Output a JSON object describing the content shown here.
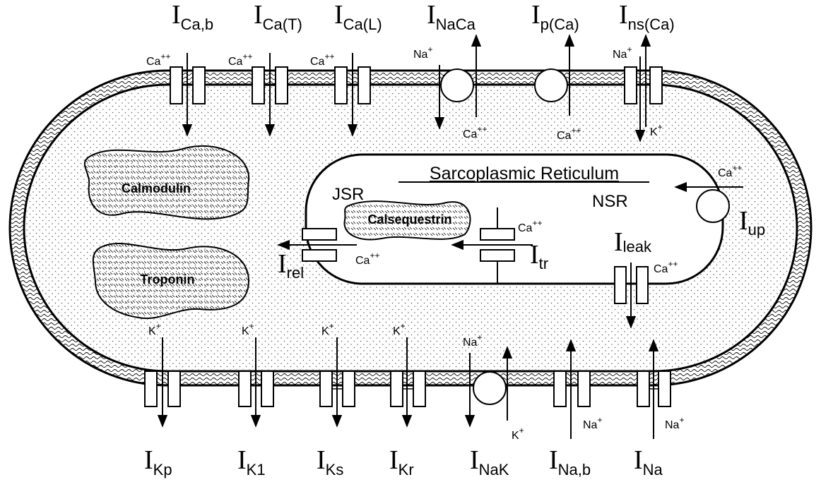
{
  "currents_top": {
    "ca_b": {
      "main": "I",
      "sub": "Ca,b"
    },
    "ca_t": {
      "main": "I",
      "sub": "Ca(T)"
    },
    "ca_l": {
      "main": "I",
      "sub": "Ca(L)"
    },
    "naca": {
      "main": "I",
      "sub": "NaCa"
    },
    "p_ca": {
      "main": "I",
      "sub": "p(Ca)"
    },
    "ns_ca": {
      "main": "I",
      "sub": "ns(Ca)"
    }
  },
  "currents_bottom": {
    "kp": {
      "main": "I",
      "sub": "Kp"
    },
    "k1": {
      "main": "I",
      "sub": "K1"
    },
    "ks": {
      "main": "I",
      "sub": "Ks"
    },
    "kr": {
      "main": "I",
      "sub": "Kr"
    },
    "nak": {
      "main": "I",
      "sub": "NaK"
    },
    "na_b": {
      "main": "I",
      "sub": "Na,b"
    },
    "na": {
      "main": "I",
      "sub": "Na"
    }
  },
  "currents_internal": {
    "up": {
      "main": "I",
      "sub": "up"
    },
    "rel": {
      "main": "I",
      "sub": "rel"
    },
    "tr": {
      "main": "I",
      "sub": "tr"
    },
    "leak": {
      "main": "I",
      "sub": "leak"
    }
  },
  "ions": {
    "ca": {
      "base": "Ca",
      "charge": "++"
    },
    "na": {
      "base": "Na",
      "charge": "+"
    },
    "k": {
      "base": "K",
      "charge": "+"
    }
  },
  "sr": {
    "title": "Sarcoplasmic Reticulum",
    "jsr": "JSR",
    "nsr": "NSR"
  },
  "buffers": {
    "calmodulin": "Calmodulin",
    "troponin": "Troponin",
    "calsequestrin": "Calsequestrin"
  },
  "colors": {
    "line": "#000000",
    "background": "#ffffff"
  }
}
